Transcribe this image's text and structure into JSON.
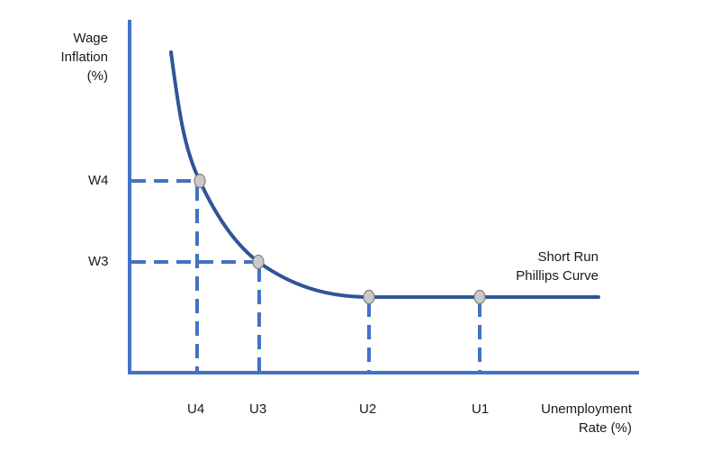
{
  "y_axis_title": [
    "Wage",
    "Inflation",
    "(%)"
  ],
  "x_axis_title": [
    "Unemployment",
    "Rate (%)"
  ],
  "curve_label": [
    "Short Run",
    "Phillips Curve"
  ],
  "y_ticks": [
    "W4",
    "W3"
  ],
  "x_ticks": [
    "U4",
    "U3",
    "U2",
    "U1"
  ],
  "colors": {
    "axis": "#4472c4",
    "curve": "#2f5597",
    "dashes": "#4472c4",
    "marker_fill": "#c9c9c9",
    "marker_stroke": "#7f7f7f",
    "text": "#1a1a1a"
  }
}
